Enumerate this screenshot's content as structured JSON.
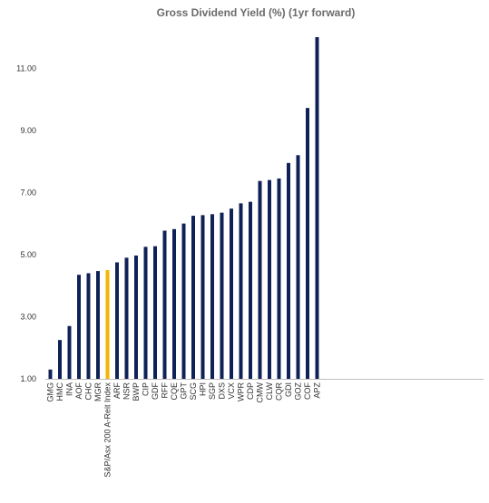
{
  "chart_data": {
    "type": "bar",
    "title": "Gross Dividend Yield (%) (1yr forward)",
    "xlabel": "",
    "ylabel": "",
    "ylim": [
      1.0,
      12.0
    ],
    "yticks": [
      "1.00",
      "3.00",
      "5.00",
      "7.00",
      "9.00",
      "11.00"
    ],
    "grid": false,
    "legend": "none",
    "categories": [
      "GMG",
      "HMC",
      "INA",
      "AOF",
      "CHC",
      "MGR",
      "S&P/Asx 200 A-Reit Index",
      "ARF",
      "NSR",
      "BWP",
      "CIP",
      "GDF",
      "RFF",
      "CQE",
      "GPT",
      "SCG",
      "HPI",
      "SGP",
      "DXS",
      "VCX",
      "WPR",
      "CDP",
      "CMW",
      "CLW",
      "CQR",
      "GDI",
      "GOZ",
      "COF",
      "APZ"
    ],
    "values": [
      1.3,
      2.25,
      2.7,
      4.35,
      4.4,
      4.47,
      4.5,
      4.75,
      4.9,
      4.97,
      5.25,
      5.27,
      5.77,
      5.82,
      6.0,
      6.25,
      6.27,
      6.3,
      6.35,
      6.48,
      6.65,
      6.7,
      7.37,
      7.4,
      7.45,
      7.95,
      8.2,
      9.72,
      12.0
    ],
    "highlight_category": "S&P/Asx 200 A-Reit Index",
    "colors": {
      "bar": "#0f2156",
      "highlight": "#f2b701",
      "axis": "#bfbfbf"
    }
  }
}
